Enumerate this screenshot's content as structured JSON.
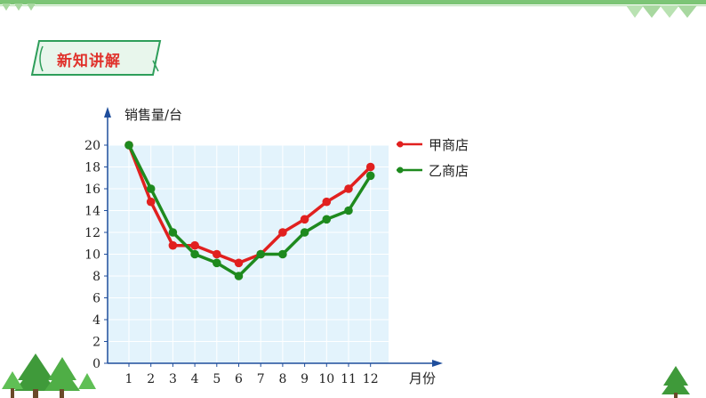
{
  "section_tag": {
    "label": "新知讲解"
  },
  "colors": {
    "top_bar": "#7cc576",
    "tag_border": "#2e9e5a",
    "tag_fill": "#e8f6ec",
    "tag_text": "#e0322c",
    "plot_bg": "#e3f3fc",
    "grid": "#ffffff",
    "axis": "#1f4e9c",
    "tree": "#3f9a3a"
  },
  "chart_data": {
    "type": "line",
    "ylabel": "销售量/台",
    "xlabel": "月份",
    "categories": [
      "1",
      "2",
      "3",
      "4",
      "5",
      "6",
      "7",
      "8",
      "9",
      "10",
      "11",
      "12"
    ],
    "yticks": [
      0,
      2,
      4,
      6,
      8,
      10,
      12,
      14,
      16,
      18,
      20
    ],
    "ylim": [
      0,
      20
    ],
    "grid": true,
    "legend_position": "top-right",
    "series": [
      {
        "name": "甲商店",
        "color": "#e1201f",
        "values": [
          20,
          14.8,
          10.8,
          10.8,
          10,
          9.2,
          10,
          12,
          13.2,
          14.8,
          16,
          18
        ]
      },
      {
        "name": "乙商店",
        "color": "#1e8a1e",
        "values": [
          20,
          16,
          12,
          10,
          9.2,
          8,
          10,
          10,
          12,
          13.2,
          14,
          17.2
        ]
      }
    ]
  }
}
